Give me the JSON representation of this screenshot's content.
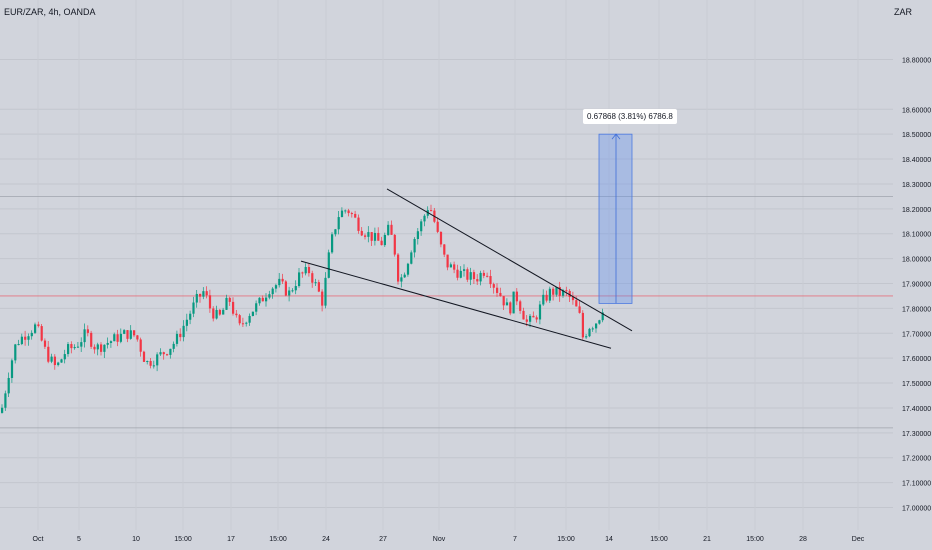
{
  "header": {
    "symbol": "EUR/ZAR, 4h, OANDA",
    "currency": "ZAR"
  },
  "measure": {
    "label": "0.67868 (3.81%) 6786.8",
    "fill_color": "#5b8def",
    "from_price": 17.82,
    "to_price": 18.5
  },
  "colors": {
    "up": "#089981",
    "down": "#f23645",
    "trendline": "#131722",
    "current_price_line": "#f23645"
  },
  "chart_data": {
    "type": "candlestick",
    "title": "EUR/ZAR, 4h, OANDA",
    "y_axis": {
      "unit": "ZAR",
      "ylim": [
        16.96,
        18.98
      ],
      "ticks": [
        "18.80000",
        "18.60000",
        "18.50000",
        "18.40000",
        "18.30000",
        "18.20000",
        "18.10000",
        "18.00000",
        "17.90000",
        "17.80000",
        "17.70000",
        "17.60000",
        "17.50000",
        "17.40000",
        "17.30000",
        "17.20000",
        "17.10000",
        "17.00000"
      ]
    },
    "x_axis": {
      "ticks": [
        "Oct",
        "5",
        "10",
        "15:00",
        "17",
        "15:00",
        "24",
        "27",
        "Nov",
        "7",
        "15:00",
        "14",
        "15:00",
        "21",
        "15:00",
        "28",
        "Dec"
      ]
    },
    "horizontal_lines": [
      18.25,
      17.85,
      17.32
    ],
    "trendlines": [
      {
        "name": "upper",
        "from": {
          "x": 387,
          "price": 18.28
        },
        "to": {
          "x": 632,
          "price": 17.71
        }
      },
      {
        "name": "lower",
        "from": {
          "x": 301,
          "price": 17.99
        },
        "to": {
          "x": 611,
          "price": 17.64
        }
      }
    ],
    "price_keypoints": [
      [
        0,
        17.38
      ],
      [
        8,
        17.55
      ],
      [
        15,
        17.66
      ],
      [
        25,
        17.7
      ],
      [
        35,
        17.73
      ],
      [
        45,
        17.62
      ],
      [
        55,
        17.56
      ],
      [
        65,
        17.63
      ],
      [
        75,
        17.65
      ],
      [
        85,
        17.7
      ],
      [
        95,
        17.64
      ],
      [
        105,
        17.66
      ],
      [
        115,
        17.68
      ],
      [
        125,
        17.7
      ],
      [
        135,
        17.69
      ],
      [
        145,
        17.58
      ],
      [
        155,
        17.6
      ],
      [
        165,
        17.63
      ],
      [
        175,
        17.67
      ],
      [
        185,
        17.75
      ],
      [
        195,
        17.83
      ],
      [
        203,
        17.87
      ],
      [
        210,
        17.79
      ],
      [
        218,
        17.76
      ],
      [
        228,
        17.84
      ],
      [
        238,
        17.72
      ],
      [
        248,
        17.78
      ],
      [
        258,
        17.82
      ],
      [
        268,
        17.88
      ],
      [
        278,
        17.9
      ],
      [
        288,
        17.86
      ],
      [
        298,
        17.93
      ],
      [
        308,
        17.95
      ],
      [
        316,
        17.88
      ],
      [
        322,
        17.82
      ],
      [
        326,
        17.97
      ],
      [
        332,
        18.1
      ],
      [
        338,
        18.18
      ],
      [
        346,
        18.2
      ],
      [
        352,
        18.17
      ],
      [
        360,
        18.12
      ],
      [
        370,
        18.09
      ],
      [
        380,
        18.06
      ],
      [
        388,
        18.12
      ],
      [
        393,
        18.05
      ],
      [
        398,
        17.9
      ],
      [
        405,
        17.97
      ],
      [
        412,
        18.07
      ],
      [
        420,
        18.14
      ],
      [
        428,
        18.22
      ],
      [
        432,
        18.17
      ],
      [
        438,
        18.07
      ],
      [
        445,
        17.98
      ],
      [
        455,
        17.95
      ],
      [
        465,
        17.93
      ],
      [
        475,
        17.92
      ],
      [
        485,
        17.96
      ],
      [
        492,
        17.9
      ],
      [
        500,
        17.85
      ],
      [
        508,
        17.79
      ],
      [
        514,
        17.86
      ],
      [
        520,
        17.8
      ],
      [
        526,
        17.74
      ],
      [
        534,
        17.76
      ],
      [
        542,
        17.83
      ],
      [
        550,
        17.87
      ],
      [
        558,
        17.86
      ],
      [
        566,
        17.86
      ],
      [
        572,
        17.82
      ],
      [
        578,
        17.78
      ],
      [
        582,
        17.68
      ],
      [
        588,
        17.73
      ],
      [
        594,
        17.74
      ],
      [
        600,
        17.78
      ],
      [
        604,
        17.84
      ]
    ]
  }
}
